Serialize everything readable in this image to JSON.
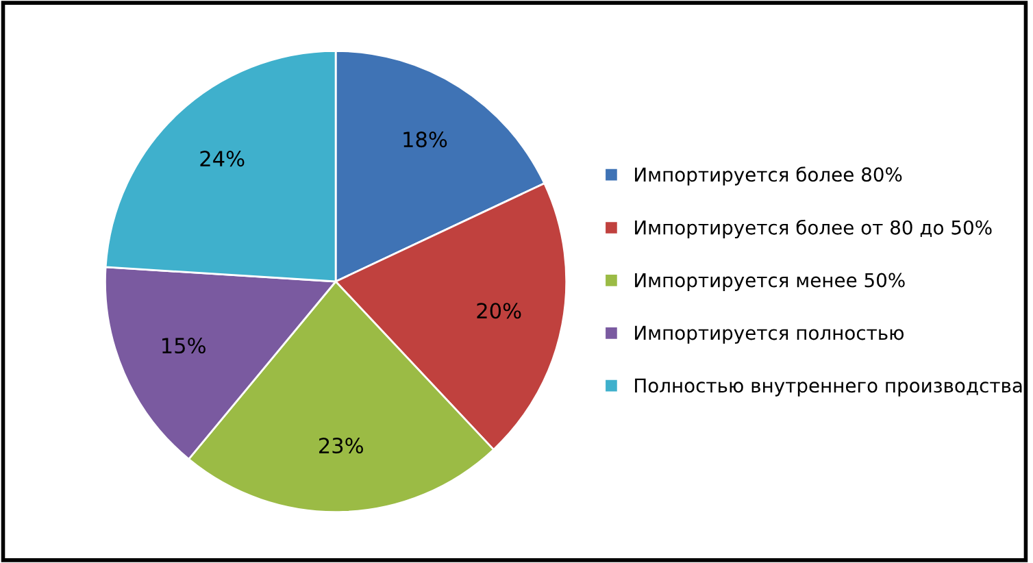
{
  "chart_data": {
    "type": "pie",
    "categories": [
      "Импортируется более 80%",
      "Импортируется более от 80 до 50%",
      "Импортируется менее 50%",
      "Импортируется полностью",
      "Полностью внутреннего производства"
    ],
    "values": [
      18,
      20,
      23,
      15,
      24
    ],
    "colors": [
      "#3f73b5",
      "#c0413e",
      "#9bbb45",
      "#7a5aa0",
      "#3fb0cc"
    ],
    "value_labels": [
      "18%",
      "20%",
      "23%",
      "15%",
      "24%"
    ],
    "legend": "right"
  }
}
